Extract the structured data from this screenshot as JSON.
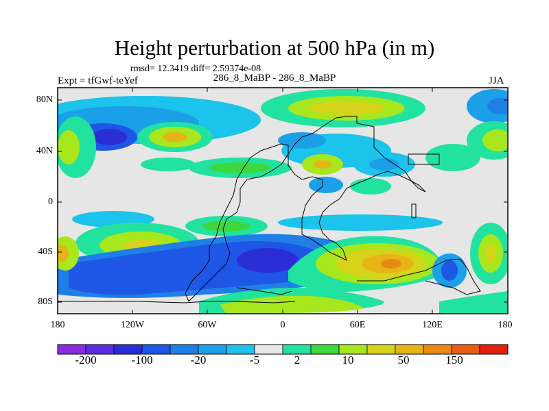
{
  "title": "Height perturbation at 500 hPa (in m)",
  "stats": "rmsd= 12.3419 diff= 2.59374e-08",
  "expt_label": "Expt = tfGwf-teYef",
  "experiment_name": "286_8_MaBP - 286_8_MaBP",
  "season": "JJA",
  "lat_ticks": [
    "80N",
    "40N",
    "0",
    "40S",
    "80S"
  ],
  "lon_ticks": [
    "180",
    "120W",
    "60W",
    "0",
    "60E",
    "120E",
    "180"
  ],
  "colorbar": {
    "colors": [
      "#8a2be2",
      "#5a2de0",
      "#2b2ed6",
      "#1e56e6",
      "#1f7fe6",
      "#1ba0e8",
      "#1cc3ea",
      "#e6e6e6",
      "#22e2a0",
      "#3ed83e",
      "#a8e61e",
      "#d6d41a",
      "#e6b416",
      "#e68a14",
      "#e85c14",
      "#e61e10"
    ],
    "labels": [
      "-200",
      "-100",
      "-20",
      "-5",
      "2",
      "10",
      "50",
      "150"
    ]
  }
}
